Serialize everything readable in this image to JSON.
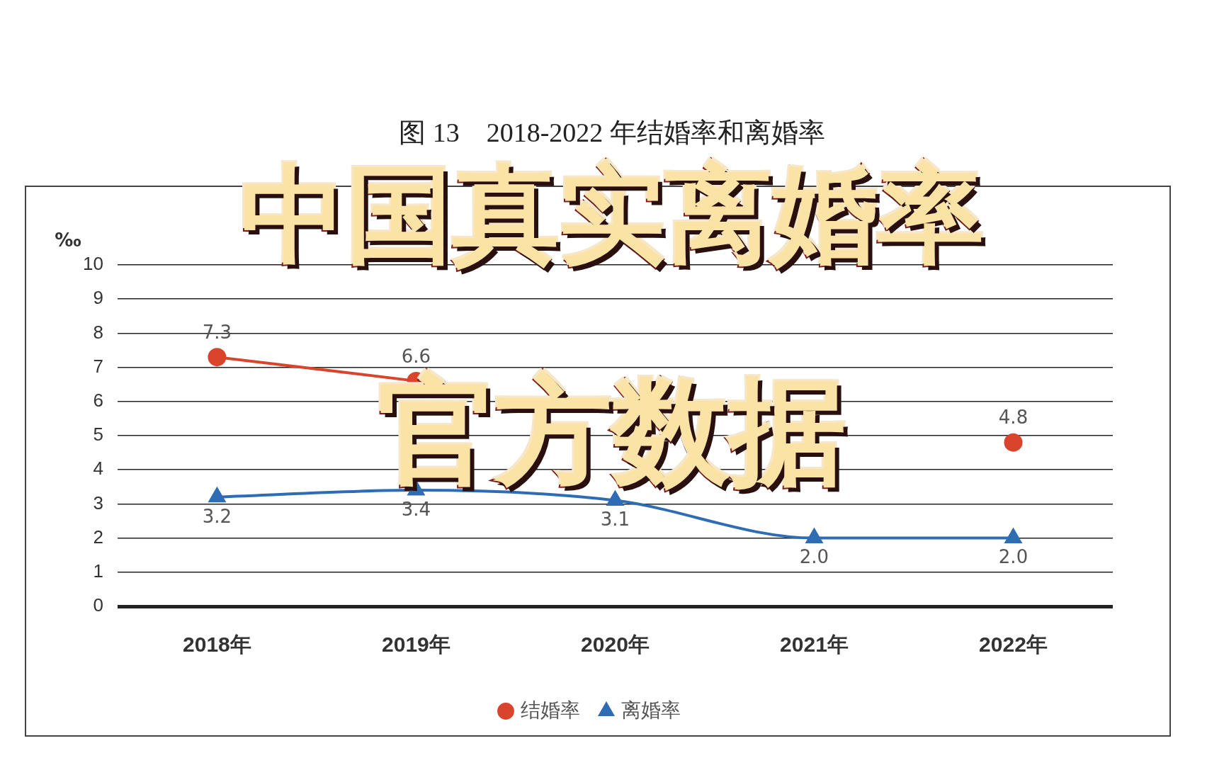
{
  "chart_data": {
    "type": "line",
    "title": "图 13    2018-2022 年结婚率和离婚率",
    "ylabel": "‰",
    "categories": [
      "2018年",
      "2019年",
      "2020年",
      "2021年",
      "2022年"
    ],
    "series": [
      {
        "name": "结婚率",
        "color": "#d9452c",
        "marker": "circle",
        "values": [
          7.3,
          6.6,
          null,
          null,
          4.8
        ],
        "value_labels": [
          "7.3",
          "6.6",
          null,
          null,
          "4.8"
        ]
      },
      {
        "name": "离婚率",
        "color": "#2e6db4",
        "marker": "triangle",
        "values": [
          3.2,
          3.4,
          3.1,
          2.0,
          2.0
        ],
        "value_labels": [
          "3.2",
          "3.4",
          "3.1",
          "2.0",
          "2.0"
        ]
      }
    ],
    "ylim": [
      0,
      10
    ],
    "yticks": [
      0,
      1,
      2,
      3,
      4,
      5,
      6,
      7,
      8,
      9,
      10
    ],
    "grid": "y",
    "legend": "bottom",
    "annotations": [
      "中国真实离婚率",
      "官方数据"
    ]
  }
}
